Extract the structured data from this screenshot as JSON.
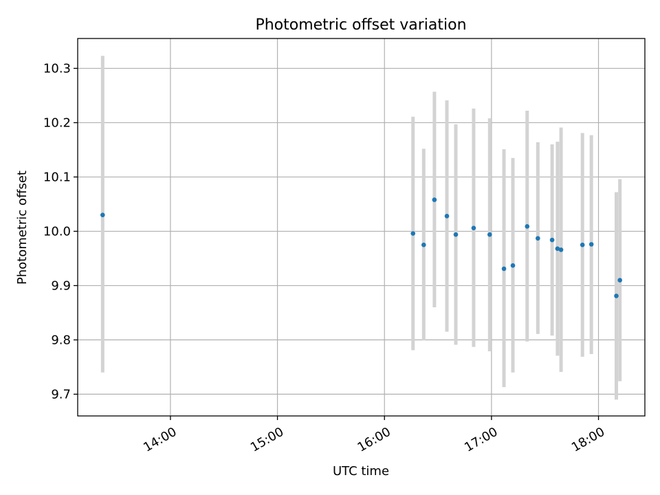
{
  "chart_data": {
    "type": "scatter",
    "title": "Photometric offset variation",
    "xlabel": "UTC time",
    "ylabel": "Photometric offset",
    "x_axis_type": "time",
    "xlim": [
      "13:08",
      "18:26"
    ],
    "ylim": [
      9.66,
      10.355
    ],
    "x_ticks": [
      "14:00",
      "15:00",
      "16:00",
      "17:00",
      "18:00"
    ],
    "y_ticks": [
      "9.7",
      "9.8",
      "9.9",
      "10.0",
      "10.1",
      "10.2",
      "10.3"
    ],
    "grid": true,
    "point_color": "#1f77b4",
    "errorbar_color": "#d3d3d3",
    "series": [
      {
        "points": [
          {
            "x": "13:22",
            "y": 10.03,
            "y_low": 9.74,
            "y_high": 10.323
          },
          {
            "x": "16:16",
            "y": 9.996,
            "y_low": 9.781,
            "y_high": 10.211
          },
          {
            "x": "16:22",
            "y": 9.975,
            "y_low": 9.799,
            "y_high": 10.152
          },
          {
            "x": "16:28",
            "y": 10.058,
            "y_low": 9.86,
            "y_high": 10.257
          },
          {
            "x": "16:35",
            "y": 10.028,
            "y_low": 9.815,
            "y_high": 10.241
          },
          {
            "x": "16:40",
            "y": 9.994,
            "y_low": 9.791,
            "y_high": 10.197
          },
          {
            "x": "16:50",
            "y": 10.006,
            "y_low": 9.787,
            "y_high": 10.226
          },
          {
            "x": "16:59",
            "y": 9.994,
            "y_low": 9.779,
            "y_high": 10.208
          },
          {
            "x": "17:07",
            "y": 9.931,
            "y_low": 9.713,
            "y_high": 10.151
          },
          {
            "x": "17:12",
            "y": 9.937,
            "y_low": 9.74,
            "y_high": 10.135
          },
          {
            "x": "17:20",
            "y": 10.009,
            "y_low": 9.797,
            "y_high": 10.222
          },
          {
            "x": "17:26",
            "y": 9.987,
            "y_low": 9.811,
            "y_high": 10.164
          },
          {
            "x": "17:34",
            "y": 9.984,
            "y_low": 9.808,
            "y_high": 10.16
          },
          {
            "x": "17:37",
            "y": 9.968,
            "y_low": 9.771,
            "y_high": 10.165
          },
          {
            "x": "17:39",
            "y": 9.966,
            "y_low": 9.741,
            "y_high": 10.191
          },
          {
            "x": "17:51",
            "y": 9.975,
            "y_low": 9.769,
            "y_high": 10.181
          },
          {
            "x": "17:56",
            "y": 9.976,
            "y_low": 9.774,
            "y_high": 10.177
          },
          {
            "x": "18:10",
            "y": 9.881,
            "y_low": 9.69,
            "y_high": 10.072
          },
          {
            "x": "18:12",
            "y": 9.91,
            "y_low": 9.724,
            "y_high": 10.096
          }
        ]
      }
    ]
  }
}
